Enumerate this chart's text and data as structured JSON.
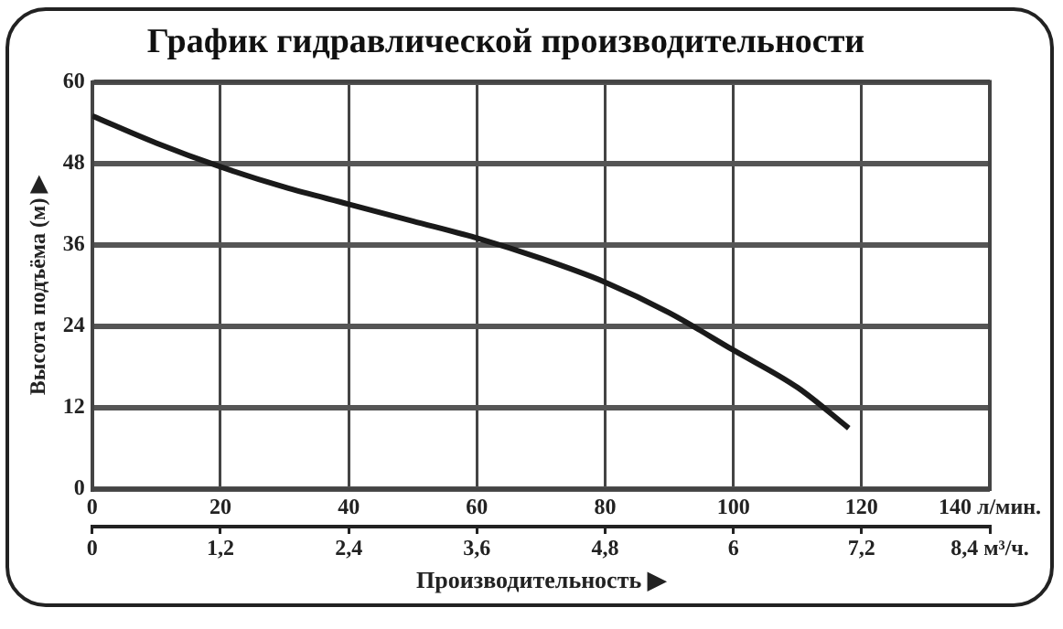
{
  "chart_data": {
    "type": "line",
    "title": "График гидравлической производительности",
    "xlabel": "Производительность ▶",
    "ylabel": "Высота подъёма (м) ▶",
    "x": [
      0,
      10,
      20,
      30,
      40,
      50,
      60,
      70,
      80,
      90,
      100,
      110,
      118
    ],
    "series": [
      {
        "color": "#1a1a1a",
        "values": [
          55,
          51,
          47.5,
          44.5,
          42,
          39.5,
          37,
          34,
          30.5,
          26,
          20.5,
          15,
          9
        ]
      }
    ],
    "xlim": [
      0,
      140
    ],
    "xticks": [
      0,
      20,
      40,
      60,
      80,
      100,
      120,
      {
        "value": 140,
        "label": "140 л/мин."
      }
    ],
    "x2lim": [
      0,
      8.4
    ],
    "x2ticks": [
      0,
      {
        "value": 1.2,
        "label": "1,2"
      },
      {
        "value": 2.4,
        "label": "2,4"
      },
      {
        "value": 3.6,
        "label": "3,6"
      },
      {
        "value": 4.8,
        "label": "4,8"
      },
      6,
      {
        "value": 7.2,
        "label": "7,2"
      },
      {
        "value": 8.4,
        "label": "8,4 м³/ч."
      }
    ],
    "ylim": [
      0,
      60
    ],
    "yticks": [
      0,
      12,
      24,
      36,
      48,
      60
    ],
    "grid": true,
    "legend": false,
    "marker": "none",
    "line_style": "solid"
  }
}
